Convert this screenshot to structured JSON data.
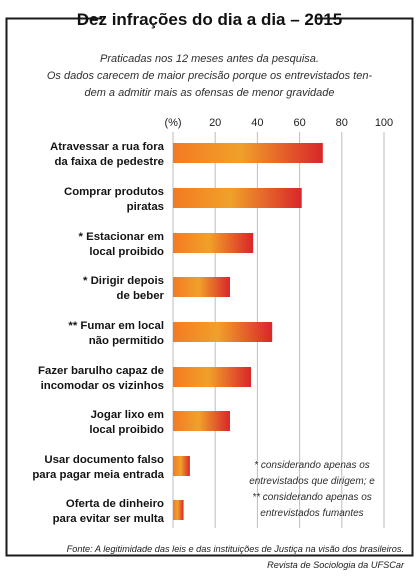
{
  "chart_data": {
    "type": "bar",
    "orientation": "horizontal",
    "title": "Dez infrações do dia a dia – 2015",
    "subtitle": [
      "Praticadas nos 12 meses antes da pesquisa.",
      "Os dados carecem de maior precisão porque os entrevistados ten-",
      "dem a admitir mais as ofensas de menor gravidade"
    ],
    "xlabel": "(%)",
    "xlim": [
      0,
      100
    ],
    "ticks": [
      "20",
      "40",
      "60",
      "80",
      "100"
    ],
    "categories": [
      [
        "Atravessar a rua fora",
        "da faixa de pedestre"
      ],
      [
        "Comprar produtos",
        "piratas"
      ],
      [
        "* Estacionar em",
        "local proibido"
      ],
      [
        "* Dirigir depois",
        "de beber"
      ],
      [
        "** Fumar em local",
        "não permitido"
      ],
      [
        "Fazer barulho capaz de",
        "incomodar os vizinhos"
      ],
      [
        "Jogar lixo em",
        "local proibido"
      ],
      [
        "Usar documento falso",
        "para pagar meia entrada"
      ],
      [
        "Oferta de dinheiro",
        "para evitar ser multa"
      ]
    ],
    "values": [
      71,
      61,
      38,
      27,
      47,
      37,
      27,
      8,
      5
    ],
    "notes": [
      "* considerando apenas os",
      "entrevistados que dirigem; e",
      "** considerando apenas os",
      "entrevistados fumantes"
    ],
    "source": [
      "Fonte: A legitimidade das leis e das instituições de Justiça na visão dos brasileiros.",
      "Revista de Sociologia da UFSCar"
    ],
    "grid": true,
    "legend": "none",
    "colors": {
      "frame": "#1a1a1a",
      "grid": "#bdbdbd",
      "bar_start": "#f47a22",
      "bar_mid": "#f0a12a",
      "bar_end": "#d9262a"
    }
  }
}
